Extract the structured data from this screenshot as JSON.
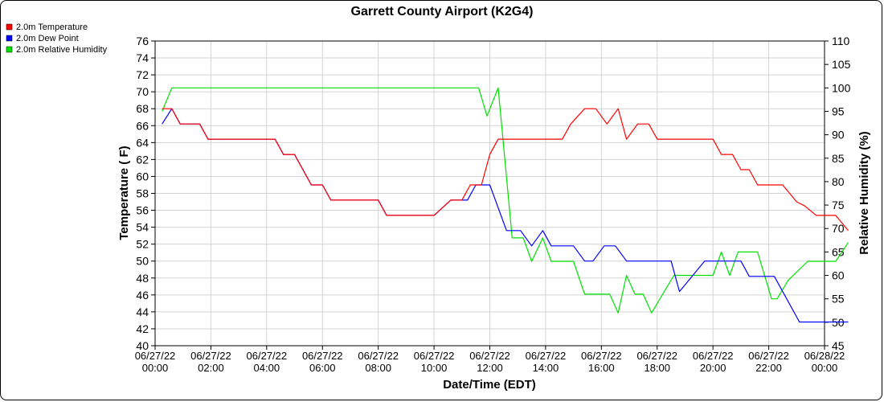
{
  "chart_data": {
    "type": "line",
    "title": "Garrett County Airport (K2G4)",
    "xlabel": "Date/Time (EDT)",
    "ylabel": "Temperature ( F)",
    "y2label": "Relative Humidity (%)",
    "ylim": [
      40,
      76
    ],
    "y2lim": [
      45,
      110
    ],
    "y_ticks": [
      40,
      42,
      44,
      46,
      48,
      50,
      52,
      54,
      56,
      58,
      60,
      62,
      64,
      66,
      68,
      70,
      72,
      74,
      76
    ],
    "y2_ticks": [
      45,
      50,
      55,
      60,
      65,
      70,
      75,
      80,
      85,
      90,
      95,
      100,
      105,
      110
    ],
    "x_ticks": [
      {
        "date": "06/27/22",
        "time": "00:00",
        "h": 0
      },
      {
        "date": "06/27/22",
        "time": "02:00",
        "h": 2
      },
      {
        "date": "06/27/22",
        "time": "04:00",
        "h": 4
      },
      {
        "date": "06/27/22",
        "time": "06:00",
        "h": 6
      },
      {
        "date": "06/27/22",
        "time": "08:00",
        "h": 8
      },
      {
        "date": "06/27/22",
        "time": "10:00",
        "h": 10
      },
      {
        "date": "06/27/22",
        "time": "12:00",
        "h": 12
      },
      {
        "date": "06/27/22",
        "time": "14:00",
        "h": 14
      },
      {
        "date": "06/27/22",
        "time": "16:00",
        "h": 16
      },
      {
        "date": "06/27/22",
        "time": "18:00",
        "h": 18
      },
      {
        "date": "06/27/22",
        "time": "20:00",
        "h": 20
      },
      {
        "date": "06/27/22",
        "time": "22:00",
        "h": 22
      },
      {
        "date": "06/28/22",
        "time": "00:00",
        "h": 24
      }
    ],
    "xlim": [
      0,
      24
    ],
    "grid": true,
    "legend_position": "top-left",
    "series": [
      {
        "name": "2.0m Temperature",
        "color": "#ff0000",
        "axis": "left",
        "points": [
          [
            0.25,
            68
          ],
          [
            0.6,
            68
          ],
          [
            0.9,
            66.2
          ],
          [
            1.6,
            66.2
          ],
          [
            1.9,
            64.4
          ],
          [
            4.3,
            64.4
          ],
          [
            4.6,
            62.6
          ],
          [
            5.0,
            62.6
          ],
          [
            5.6,
            59
          ],
          [
            6.0,
            59
          ],
          [
            6.3,
            57.2
          ],
          [
            8.0,
            57.2
          ],
          [
            8.3,
            55.4
          ],
          [
            10.0,
            55.4
          ],
          [
            10.6,
            57.2
          ],
          [
            11.0,
            57.2
          ],
          [
            11.3,
            59
          ],
          [
            11.7,
            59
          ],
          [
            12.0,
            62.6
          ],
          [
            12.3,
            64.4
          ],
          [
            14.6,
            64.4
          ],
          [
            14.9,
            66.2
          ],
          [
            15.4,
            68
          ],
          [
            15.8,
            68
          ],
          [
            16.2,
            66.2
          ],
          [
            16.6,
            68
          ],
          [
            16.9,
            64.4
          ],
          [
            17.3,
            66.2
          ],
          [
            17.7,
            66.2
          ],
          [
            18.0,
            64.4
          ],
          [
            20.0,
            64.4
          ],
          [
            20.3,
            62.6
          ],
          [
            20.7,
            62.6
          ],
          [
            21.0,
            60.8
          ],
          [
            21.3,
            60.8
          ],
          [
            21.6,
            59
          ],
          [
            22.5,
            59
          ],
          [
            23.0,
            57
          ],
          [
            23.3,
            56.5
          ],
          [
            23.7,
            55.4
          ],
          [
            24.4,
            55.4
          ],
          [
            24.85,
            53.6
          ]
        ]
      },
      {
        "name": "2.0m Dew Point",
        "color": "#0000ff",
        "axis": "left",
        "points": [
          [
            0.25,
            66.2
          ],
          [
            0.6,
            68
          ],
          [
            0.9,
            66.2
          ],
          [
            1.6,
            66.2
          ],
          [
            1.9,
            64.4
          ],
          [
            4.3,
            64.4
          ],
          [
            4.6,
            62.6
          ],
          [
            5.0,
            62.6
          ],
          [
            5.6,
            59
          ],
          [
            6.0,
            59
          ],
          [
            6.3,
            57.2
          ],
          [
            8.0,
            57.2
          ],
          [
            8.3,
            55.4
          ],
          [
            10.0,
            55.4
          ],
          [
            10.6,
            57.2
          ],
          [
            11.2,
            57.2
          ],
          [
            11.5,
            59
          ],
          [
            12.0,
            59
          ],
          [
            12.6,
            53.6
          ],
          [
            13.1,
            53.6
          ],
          [
            13.5,
            51.8
          ],
          [
            13.9,
            53.6
          ],
          [
            14.2,
            51.8
          ],
          [
            15.0,
            51.8
          ],
          [
            15.4,
            50
          ],
          [
            15.7,
            50
          ],
          [
            16.1,
            51.8
          ],
          [
            16.5,
            51.8
          ],
          [
            16.9,
            50
          ],
          [
            18.5,
            50
          ],
          [
            18.8,
            46.4
          ],
          [
            19.7,
            50
          ],
          [
            21.0,
            50
          ],
          [
            21.3,
            48.2
          ],
          [
            22.2,
            48.2
          ],
          [
            23.1,
            42.8
          ],
          [
            24.85,
            42.8
          ]
        ]
      },
      {
        "name": "2.0m Relative Humidity",
        "color": "#00e000",
        "axis": "right",
        "points": [
          [
            0.25,
            95
          ],
          [
            0.6,
            100
          ],
          [
            11.6,
            100
          ],
          [
            11.9,
            94
          ],
          [
            12.3,
            100
          ],
          [
            12.8,
            68
          ],
          [
            13.2,
            68
          ],
          [
            13.5,
            63
          ],
          [
            13.9,
            68
          ],
          [
            14.2,
            63
          ],
          [
            15.0,
            63
          ],
          [
            15.4,
            56
          ],
          [
            16.3,
            56
          ],
          [
            16.6,
            52
          ],
          [
            16.9,
            60
          ],
          [
            17.2,
            56
          ],
          [
            17.5,
            56
          ],
          [
            17.8,
            52
          ],
          [
            18.6,
            60
          ],
          [
            20.0,
            60
          ],
          [
            20.3,
            65
          ],
          [
            20.6,
            60
          ],
          [
            20.9,
            65
          ],
          [
            21.6,
            65
          ],
          [
            22.1,
            55
          ],
          [
            22.3,
            55
          ],
          [
            22.7,
            59
          ],
          [
            23.4,
            63
          ],
          [
            24.4,
            63
          ],
          [
            24.85,
            67
          ]
        ]
      }
    ]
  }
}
